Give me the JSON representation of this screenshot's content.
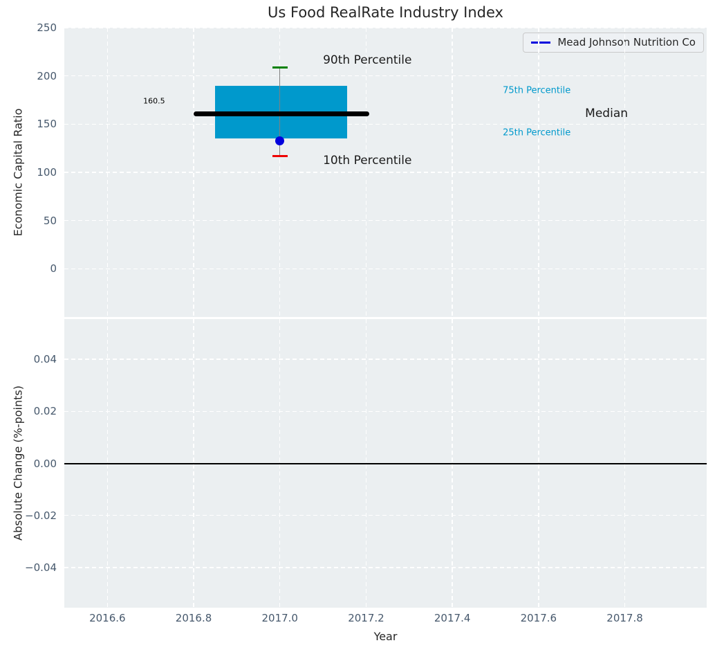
{
  "title": "Us Food RealRate Industry Index",
  "colors": {
    "axes_bg": "#ebeff1",
    "grid": "#ffffff",
    "box_fill": "#0099cc",
    "median_line": "#000000",
    "company_blue": "#0000dd",
    "p90_cap": "#008000",
    "p10_cap": "#ee0000",
    "whisker": "#808080",
    "tick_label": "#46586c",
    "zero_line": "#000000"
  },
  "legend": {
    "label": "Mead Johnson Nutrition Co",
    "line_color": "#0000dd"
  },
  "axes": {
    "top": {
      "ylabel": "Economic Capital Ratio"
    },
    "bottom": {
      "ylabel": "Absolute Change (%-points)",
      "xlabel": "Year"
    }
  },
  "chart_data": [
    {
      "type": "boxplot",
      "title": "Us Food RealRate Industry Index",
      "ylabel": "Economic Capital Ratio",
      "xlim": [
        2016.5,
        2017.99
      ],
      "ylim": [
        -50,
        250
      ],
      "grid": true,
      "legend_position": "upper right",
      "yticks": [
        {
          "v": 0,
          "label": "0"
        },
        {
          "v": 50,
          "label": "50"
        },
        {
          "v": 100,
          "label": "100"
        },
        {
          "v": 150,
          "label": "150"
        },
        {
          "v": 200,
          "label": "200"
        },
        {
          "v": 250,
          "label": "250"
        }
      ],
      "box": {
        "x_center": 2017.0,
        "p10": 117,
        "p25": 135,
        "median": 160.5,
        "p75": 190,
        "p90": 209,
        "box_x": [
          2016.85,
          2017.156
        ],
        "median_x": [
          2016.8,
          2017.207
        ],
        "cap_x": [
          2016.982,
          2017.018
        ]
      },
      "series": [
        {
          "name": "Mead Johnson Nutrition Co",
          "x": 2017.0,
          "value": 133
        }
      ],
      "annotations": [
        {
          "text": "90th Percentile",
          "x": 2017.1,
          "y": 216,
          "size": 17,
          "color": "#1a1a1a"
        },
        {
          "text": "10th Percentile",
          "x": 2017.1,
          "y": 112,
          "size": 17,
          "color": "#1a1a1a"
        },
        {
          "text": "160.5",
          "x": 2016.683,
          "y": 174,
          "size": 11,
          "color": "#000000"
        },
        {
          "text": "75th Percentile",
          "x": 2017.517,
          "y": 185,
          "size": 13,
          "color": "#0099cc"
        },
        {
          "text": "Median",
          "x": 2017.708,
          "y": 161,
          "size": 17,
          "color": "#1a1a1a"
        },
        {
          "text": "25th Percentile",
          "x": 2017.517,
          "y": 141,
          "size": 13,
          "color": "#0099cc"
        }
      ]
    },
    {
      "type": "line",
      "ylabel": "Absolute Change (%-points)",
      "xlabel": "Year",
      "xlim": [
        2016.5,
        2017.99
      ],
      "ylim": [
        -0.0555,
        0.0555
      ],
      "grid": true,
      "zero_line": 0.0,
      "series": [],
      "yticks": [
        {
          "v": -0.04,
          "label": "−0.04"
        },
        {
          "v": -0.02,
          "label": "−0.02"
        },
        {
          "v": 0.0,
          "label": "0.00"
        },
        {
          "v": 0.02,
          "label": "0.02"
        },
        {
          "v": 0.04,
          "label": "0.04"
        }
      ],
      "xticks": [
        {
          "v": 2016.6,
          "label": "2016.6"
        },
        {
          "v": 2016.8,
          "label": "2016.8"
        },
        {
          "v": 2017.0,
          "label": "2017.0"
        },
        {
          "v": 2017.2,
          "label": "2017.2"
        },
        {
          "v": 2017.4,
          "label": "2017.4"
        },
        {
          "v": 2017.6,
          "label": "2017.6"
        },
        {
          "v": 2017.8,
          "label": "2017.8"
        }
      ]
    }
  ]
}
